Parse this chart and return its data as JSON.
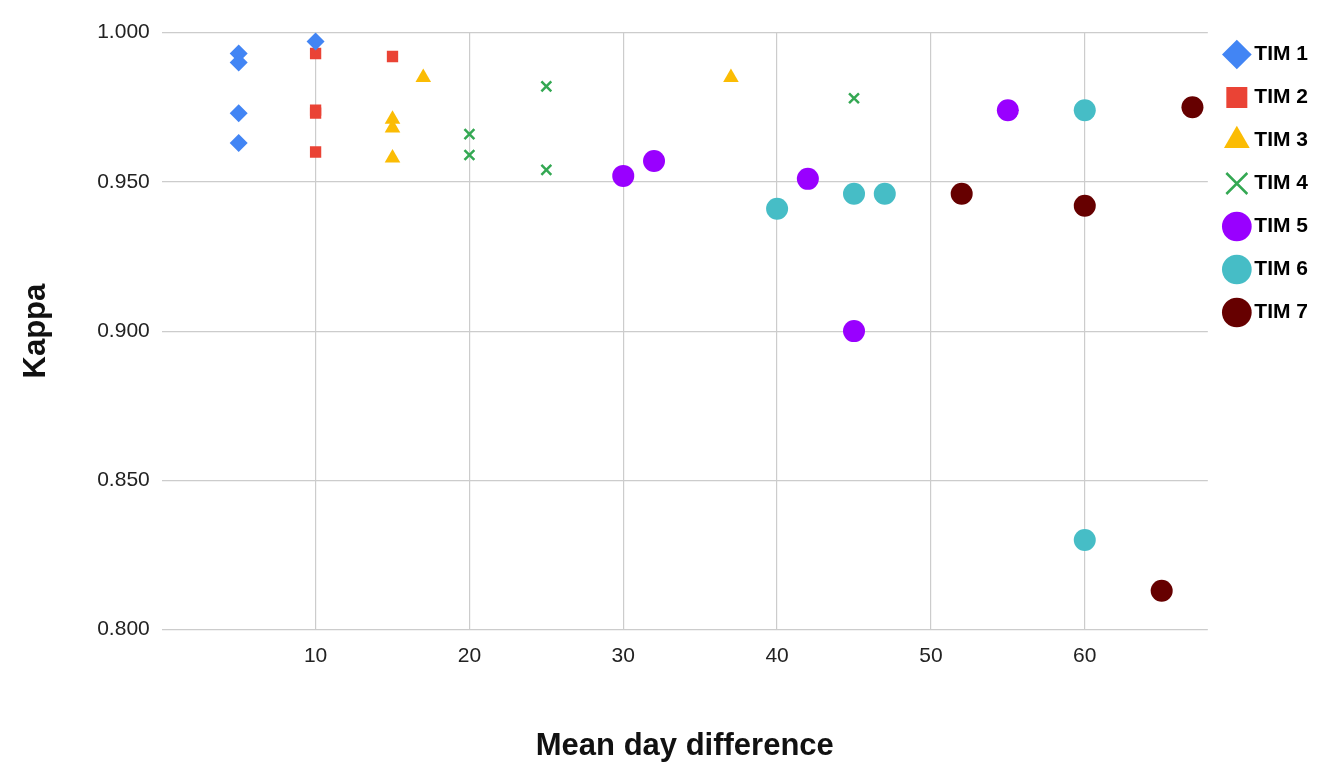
{
  "chart_data": {
    "type": "scatter",
    "xlabel": "Mean day difference",
    "ylabel": "Kappa",
    "xlim": [
      0,
      68
    ],
    "xticks": [
      10,
      20,
      30,
      40,
      50,
      60
    ],
    "ylim": [
      0.8,
      1.0
    ],
    "yticks": [
      {
        "value": 0.8,
        "label": "0.800"
      },
      {
        "value": 0.85,
        "label": "0.850"
      },
      {
        "value": 0.9,
        "label": "0.900"
      },
      {
        "value": 0.95,
        "label": "0.950"
      },
      {
        "value": 1.0,
        "label": "1.000"
      }
    ],
    "grid": true,
    "legend": "top right",
    "series": [
      {
        "name": "TIM 1",
        "color": "#4285f4",
        "marker": "diamond",
        "x": [
          5,
          5,
          5,
          5,
          10
        ],
        "values": [
          0.993,
          0.99,
          0.973,
          0.963,
          0.997
        ]
      },
      {
        "name": "TIM 2",
        "color": "#ea4335",
        "marker": "square",
        "x": [
          10,
          10,
          10,
          10,
          15
        ],
        "values": [
          0.993,
          0.974,
          0.973,
          0.96,
          0.992
        ]
      },
      {
        "name": "TIM 3",
        "color": "#fbbc04",
        "marker": "triangle",
        "x": [
          17,
          15,
          15,
          15,
          37
        ],
        "values": [
          0.985,
          0.971,
          0.968,
          0.958,
          0.985
        ]
      },
      {
        "name": "TIM 4",
        "color": "#34a853",
        "marker": "cross",
        "x": [
          20,
          20,
          25,
          25,
          45
        ],
        "values": [
          0.966,
          0.959,
          0.982,
          0.954,
          0.978
        ]
      },
      {
        "name": "TIM 5",
        "color": "#9900ff",
        "x": [
          30,
          32,
          42,
          45,
          55
        ],
        "values": [
          0.952,
          0.957,
          0.951,
          0.9,
          0.974
        ]
      },
      {
        "name": "TIM 6",
        "color": "#46bdc6",
        "marker": "circle",
        "x": [
          40,
          45,
          47,
          60,
          60
        ],
        "values": [
          0.941,
          0.946,
          0.946,
          0.974,
          0.83
        ]
      },
      {
        "name": "TIM 7",
        "color": "#660000",
        "x": [
          52,
          60,
          67,
          65
        ],
        "values": [
          0.946,
          0.942,
          0.975,
          0.813
        ]
      }
    ]
  }
}
